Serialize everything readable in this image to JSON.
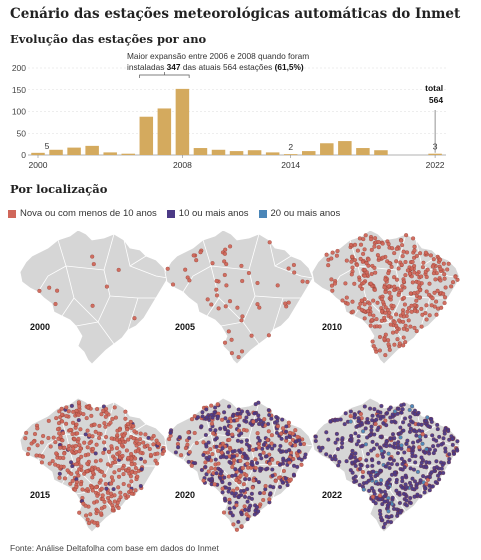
{
  "title": "Cenário das estações meteorológicas automáticas do Inmet",
  "sections": {
    "evolution": "Evolução das estações por ano",
    "location": "Por localização"
  },
  "chart_data": {
    "type": "bar",
    "categories": [
      "2000",
      "2001",
      "2002",
      "2003",
      "2004",
      "2005",
      "2006",
      "2007",
      "2008",
      "2009",
      "2010",
      "2011",
      "2012",
      "2013",
      "2014",
      "2015",
      "2016",
      "2017",
      "2018",
      "2019",
      "2020",
      "2021",
      "2022"
    ],
    "values": [
      5,
      12,
      17,
      21,
      6,
      3,
      88,
      107,
      152,
      16,
      12,
      9,
      11,
      6,
      2,
      9,
      27,
      32,
      16,
      11,
      0,
      0,
      3
    ],
    "ylim": [
      0,
      200
    ],
    "yticks": [
      "200",
      "150",
      "100",
      "50",
      "0"
    ],
    "xticks": [
      "2000",
      "2008",
      "2014",
      "2022"
    ],
    "bar_color": "#d4aa5e",
    "data_labels": [
      {
        "year": "2000",
        "text": "5"
      },
      {
        "year": "2014",
        "text": "2"
      },
      {
        "year": "2022",
        "text": "3"
      }
    ],
    "total": {
      "label": "total",
      "value": "564"
    },
    "annotation": {
      "line1": "Maior expansão entre 2006 e 2008 quando foram",
      "line2_prefix": "instaladas ",
      "line2_bold1": "347",
      "line2_mid": " das atuais 564 estações ",
      "line2_bold2": "(61,5%)"
    }
  },
  "legend": [
    {
      "label": "Nova ou com menos de 10 anos",
      "color": "#d0675a"
    },
    {
      "label": "10 ou mais anos",
      "color": "#4b3a86"
    },
    {
      "label": "20 ou mais anos",
      "color": "#4a86b8"
    }
  ],
  "maps": [
    {
      "year": "2000"
    },
    {
      "year": "2005"
    },
    {
      "year": "2010"
    },
    {
      "year": "2015"
    },
    {
      "year": "2020"
    },
    {
      "year": "2022"
    }
  ],
  "source": "Fonte: Análise Deltafolha com base em dados do Inmet"
}
